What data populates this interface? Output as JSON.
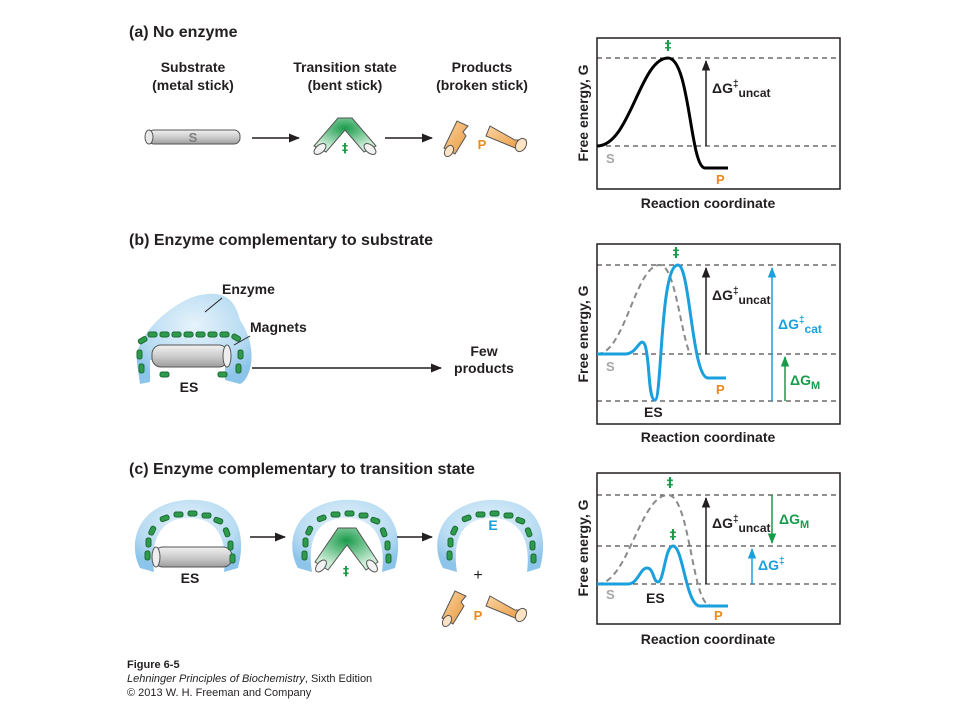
{
  "colors": {
    "green": "#1a9b4b",
    "dark_green": "#1d6b35",
    "orange": "#e88a22",
    "blue": "#1aa0dc",
    "light_blue": "#a9d2ee",
    "gray": "#b7b7b7",
    "dash_gray": "#8a8a8a",
    "black": "#231f20"
  },
  "panel_a": {
    "heading": "(a)  No enzyme",
    "substrate_label": [
      "Substrate",
      "(metal stick)"
    ],
    "transition_label": [
      "Transition state",
      "(bent stick)"
    ],
    "products_label": [
      "Products",
      "(broken stick)"
    ],
    "stick_letter": "S",
    "transition_symbol": "‡",
    "products_letter": "P",
    "graph": {
      "y_axis": "Free energy, G",
      "x_axis": "Reaction coordinate",
      "peak_symbol": "‡",
      "dg_uncat_main": "ΔG",
      "dg_uncat_sup": "‡",
      "dg_uncat_sub": "uncat",
      "s_label": "S",
      "p_label": "P"
    }
  },
  "panel_b": {
    "heading": "(b)  Enzyme complementary to substrate",
    "enzyme_label": "Enzyme",
    "magnets_label": "Magnets",
    "es_label": "ES",
    "result_label": [
      "Few",
      "products"
    ],
    "graph": {
      "y_axis": "Free energy, G",
      "x_axis": "Reaction coordinate",
      "peak_symbol": "‡",
      "dg_uncat_main": "ΔG",
      "dg_uncat_sup": "‡",
      "dg_uncat_sub": "uncat",
      "dg_cat_main": "ΔG",
      "dg_cat_sup": "‡",
      "dg_cat_sub": "cat",
      "dg_m_main": "ΔG",
      "dg_m_sub": "M",
      "s_label": "S",
      "es_label": "ES",
      "p_label": "P"
    }
  },
  "panel_c": {
    "heading": "(c)  Enzyme complementary to transition state",
    "es_label": "ES",
    "transition_symbol": "‡",
    "e_label": "E",
    "plus": "+",
    "products_letter": "P",
    "graph": {
      "y_axis": "Free energy, G",
      "x_axis": "Reaction coordinate",
      "peak_symbol_top": "‡",
      "peak_symbol_mid": "‡",
      "dg_uncat_main": "ΔG",
      "dg_uncat_sup": "‡",
      "dg_uncat_sub": "uncat",
      "dg_m_main": "ΔG",
      "dg_m_sub": "M",
      "dg_small_main": "ΔG",
      "dg_small_sup": "‡",
      "s_label": "S",
      "es_label": "ES",
      "p_label": "P"
    }
  },
  "caption": {
    "figure": "Figure 6-5",
    "book_title": "Lehninger Principles of Biochemistry",
    "edition": ", Sixth Edition",
    "copyright": "© 2013 W. H. Freeman and Company"
  }
}
